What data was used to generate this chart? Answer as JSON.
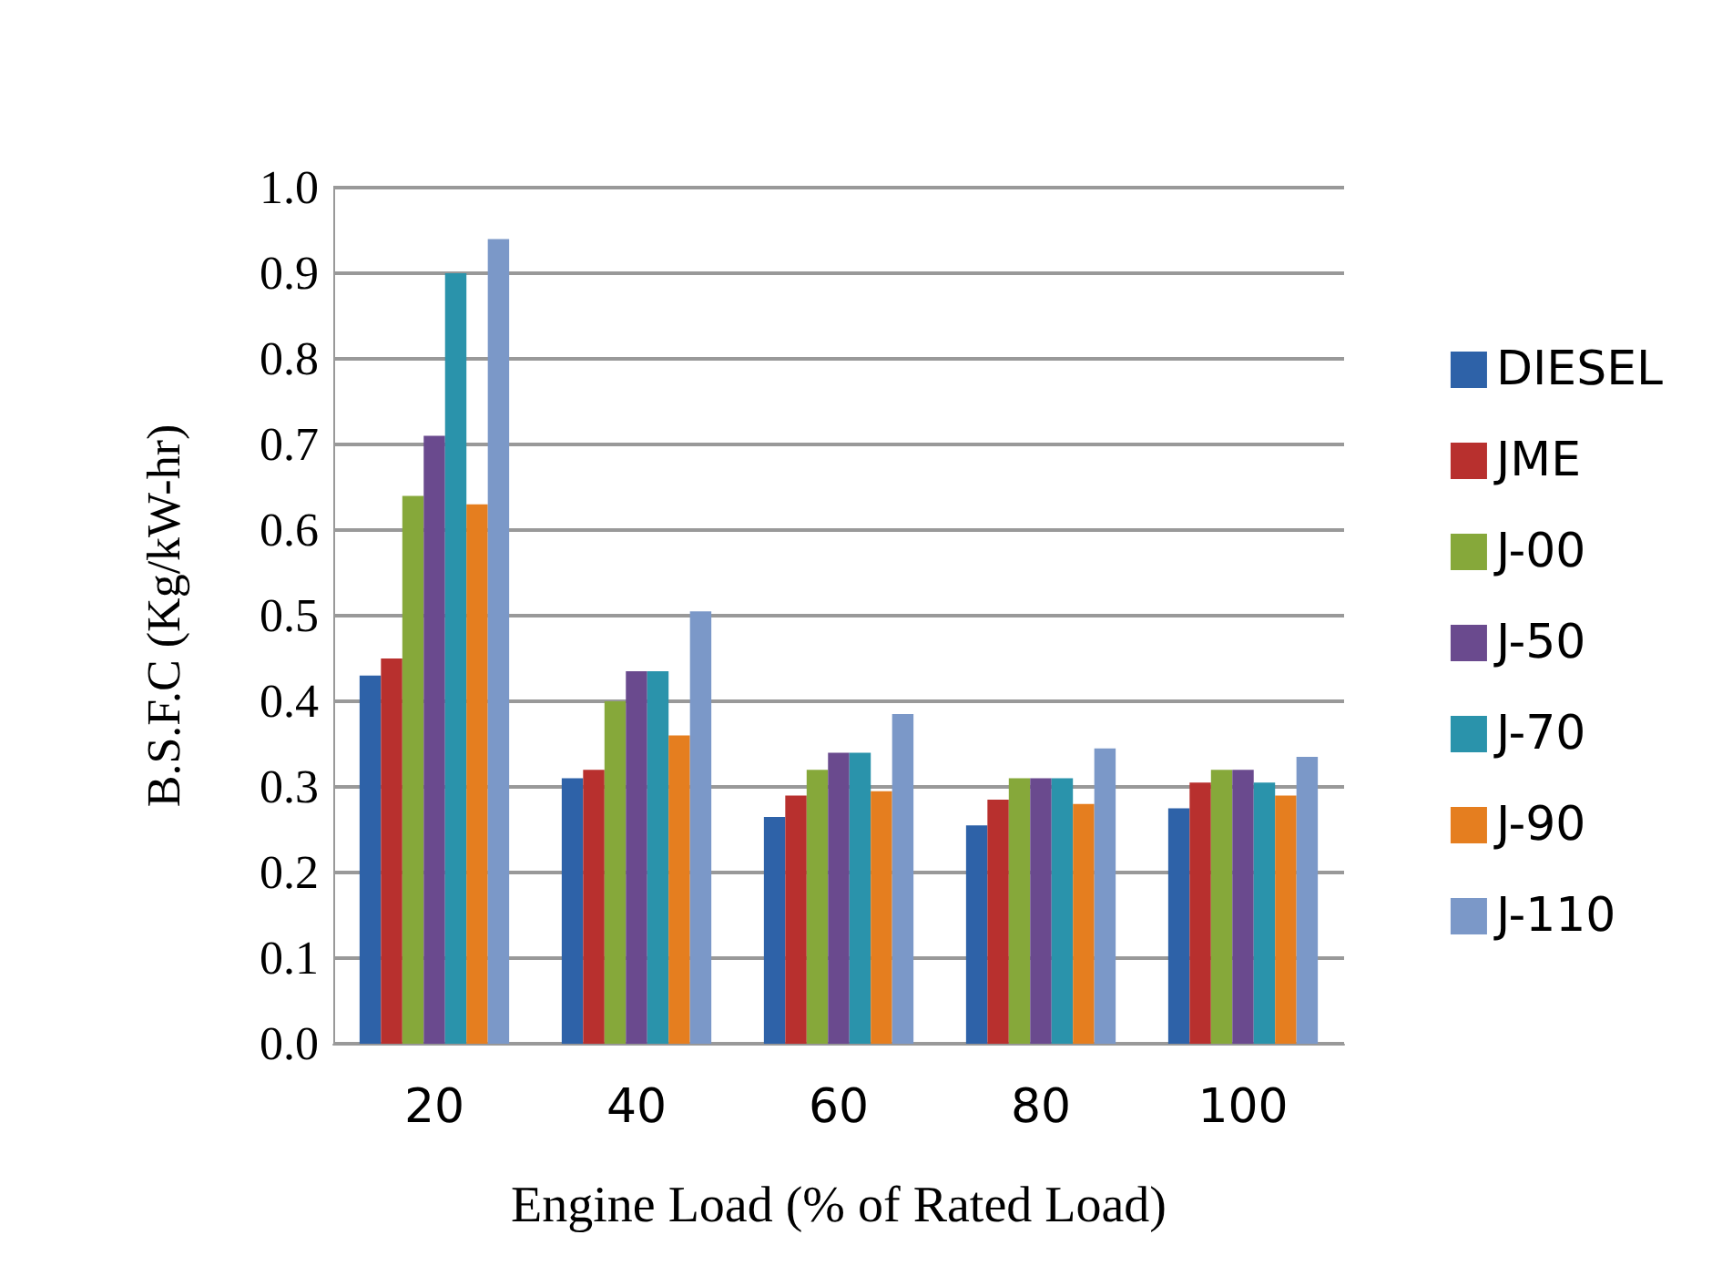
{
  "chart_data": {
    "type": "bar",
    "xlabel": "Engine Load (% of Rated Load)",
    "ylabel": "B.S.F.C (Kg/kW-hr)",
    "categories": [
      "20",
      "40",
      "60",
      "80",
      "100"
    ],
    "series": [
      {
        "name": "DIESEL",
        "color": "#2e62a8",
        "values": [
          0.43,
          0.31,
          0.265,
          0.255,
          0.275
        ]
      },
      {
        "name": "JME",
        "color": "#b8302e",
        "values": [
          0.45,
          0.32,
          0.29,
          0.285,
          0.305
        ]
      },
      {
        "name": "J-00",
        "color": "#86a83a",
        "values": [
          0.64,
          0.4,
          0.32,
          0.31,
          0.32
        ]
      },
      {
        "name": "J-50",
        "color": "#6a4a8e",
        "values": [
          0.71,
          0.435,
          0.34,
          0.31,
          0.32
        ]
      },
      {
        "name": "J-70",
        "color": "#2a93ab",
        "values": [
          0.9,
          0.435,
          0.34,
          0.31,
          0.305
        ]
      },
      {
        "name": "J-90",
        "color": "#e57e1f",
        "values": [
          0.63,
          0.36,
          0.295,
          0.28,
          0.29
        ]
      },
      {
        "name": "J-110",
        "color": "#7b98c8",
        "values": [
          0.94,
          0.505,
          0.385,
          0.345,
          0.335
        ]
      }
    ],
    "ylim": [
      0,
      1
    ],
    "yticks": [
      {
        "value": 0,
        "label": "0.0"
      },
      {
        "value": 0.1,
        "label": "0.1"
      },
      {
        "value": 0.2,
        "label": "0.2"
      },
      {
        "value": 0.3,
        "label": "0.3"
      },
      {
        "value": 0.4,
        "label": "0.4"
      },
      {
        "value": 0.5,
        "label": "0.5"
      },
      {
        "value": 0.6,
        "label": "0.6"
      },
      {
        "value": 0.7,
        "label": "0.7"
      },
      {
        "value": 0.8,
        "label": "0.8"
      },
      {
        "value": 0.9,
        "label": "0.9"
      },
      {
        "value": 1,
        "label": "1.0"
      }
    ],
    "grid": "y",
    "legend": "right"
  }
}
